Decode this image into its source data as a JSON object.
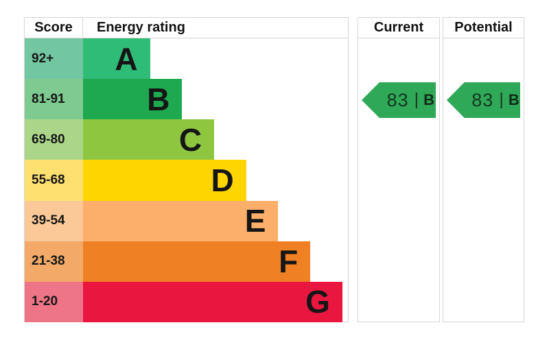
{
  "header": {
    "score_label": "Score",
    "energy_rating_label": "Energy rating",
    "current_label": "Current",
    "potential_label": "Potential"
  },
  "chart_data": {
    "type": "bar",
    "title": "EPC energy efficiency rating chart",
    "categories": [
      "A",
      "B",
      "C",
      "D",
      "E",
      "F",
      "G"
    ],
    "score_ranges": [
      "92+",
      "81-91",
      "69-80",
      "55-68",
      "39-54",
      "21-38",
      "1-20"
    ],
    "bar_length_pct": [
      25.3,
      37.4,
      49.5,
      61.6,
      73.7,
      85.8,
      97.9
    ],
    "rows": [
      {
        "letter": "A",
        "score_range": "92+",
        "bar_color": "#2fbc76",
        "cell_color": "#73c6a2",
        "bar_pct": 25.3
      },
      {
        "letter": "B",
        "score_range": "81-91",
        "bar_color": "#1ea951",
        "cell_color": "#7eca90",
        "bar_pct": 37.4
      },
      {
        "letter": "C",
        "score_range": "69-80",
        "bar_color": "#8ec63f",
        "cell_color": "#abd689",
        "bar_pct": 49.5
      },
      {
        "letter": "D",
        "score_range": "55-68",
        "bar_color": "#fed401",
        "cell_color": "#fde070",
        "bar_pct": 61.6
      },
      {
        "letter": "E",
        "score_range": "39-54",
        "bar_color": "#fbaf6b",
        "cell_color": "#fac997",
        "bar_pct": 73.7
      },
      {
        "letter": "F",
        "score_range": "21-38",
        "bar_color": "#ef8023",
        "cell_color": "#f3aa68",
        "bar_pct": 85.8
      },
      {
        "letter": "G",
        "score_range": "1-20",
        "bar_color": "#e9173f",
        "cell_color": "#ee7487",
        "bar_pct": 97.9
      }
    ],
    "current": {
      "score": "83",
      "separator": "|",
      "rating": "B",
      "arrow_color": "#2fa858",
      "row_band": "B"
    },
    "potential": {
      "score": "83",
      "separator": "|",
      "rating": "B",
      "arrow_color": "#2fa858",
      "row_band": "B"
    }
  },
  "colors": {
    "border": "#d5d5d5",
    "background": "#ffffff",
    "text": "#111111"
  }
}
